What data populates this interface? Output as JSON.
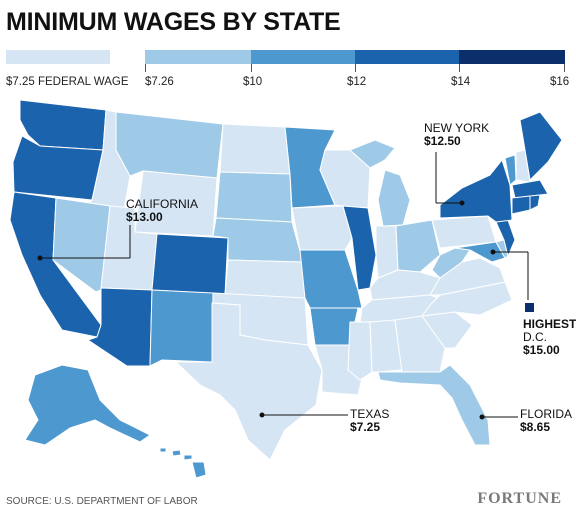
{
  "title": "MINIMUM WAGES BY STATE",
  "legend": {
    "federal_label": "$7.25 FEDERAL WAGE",
    "ticks": [
      "$7.26",
      "$10",
      "$12",
      "$14",
      "$16"
    ]
  },
  "colors": {
    "federal": "#d6e5f4",
    "bin1": "#9ecae8",
    "bin2": "#4d98cf",
    "bin3": "#1b63ac",
    "bin4": "#0b2f6b",
    "border": "#ffffff"
  },
  "callouts": {
    "new_york": {
      "name": "NEW YORK",
      "value": "$12.50"
    },
    "california": {
      "name": "CALIFORNIA",
      "value": "$13.00"
    },
    "highest": {
      "label": "HIGHEST:",
      "name": "D.C.",
      "value": "$15.00"
    },
    "texas": {
      "name": "TEXAS",
      "value": "$7.25"
    },
    "florida": {
      "name": "FLORIDA",
      "value": "$8.65"
    }
  },
  "footer": {
    "source": "SOURCE: U.S. DEPARTMENT OF LABOR",
    "brand": "FORTUNE"
  }
}
